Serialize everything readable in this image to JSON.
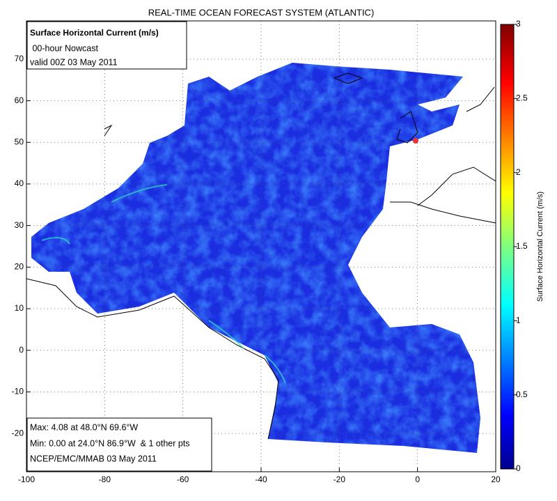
{
  "header": {
    "title": "REAL-TIME OCEAN FORECAST SYSTEM (ATLANTIC)"
  },
  "info_box": {
    "lines": [
      "Surface Horizontal Current (m/s)",
      " 00-hour Nowcast",
      "valid 00Z 03 May 2011"
    ]
  },
  "stats_box": {
    "lines": [
      "Max: 4.08 at 48.0°N 69.6°W",
      "Min: 0.00 at 24.0°N 86.9°W  & 1 other pts",
      "NCEP/EMC/MMAB 03 May 2011"
    ]
  },
  "axes": {
    "xlim": [
      -100,
      20
    ],
    "ylim": [
      -29.2,
      79.2
    ],
    "xticks": [
      -100,
      -80,
      -60,
      -40,
      -20,
      0,
      20
    ],
    "yticks": [
      -20,
      -10,
      0,
      10,
      20,
      30,
      40,
      50,
      60,
      70
    ],
    "grid": true
  },
  "colorbar": {
    "label": "Surface Horizontal Current (m/s)",
    "lim": [
      0,
      3
    ],
    "ticks": [
      0,
      0.5,
      1,
      1.5,
      2,
      2.5,
      3
    ]
  }
}
